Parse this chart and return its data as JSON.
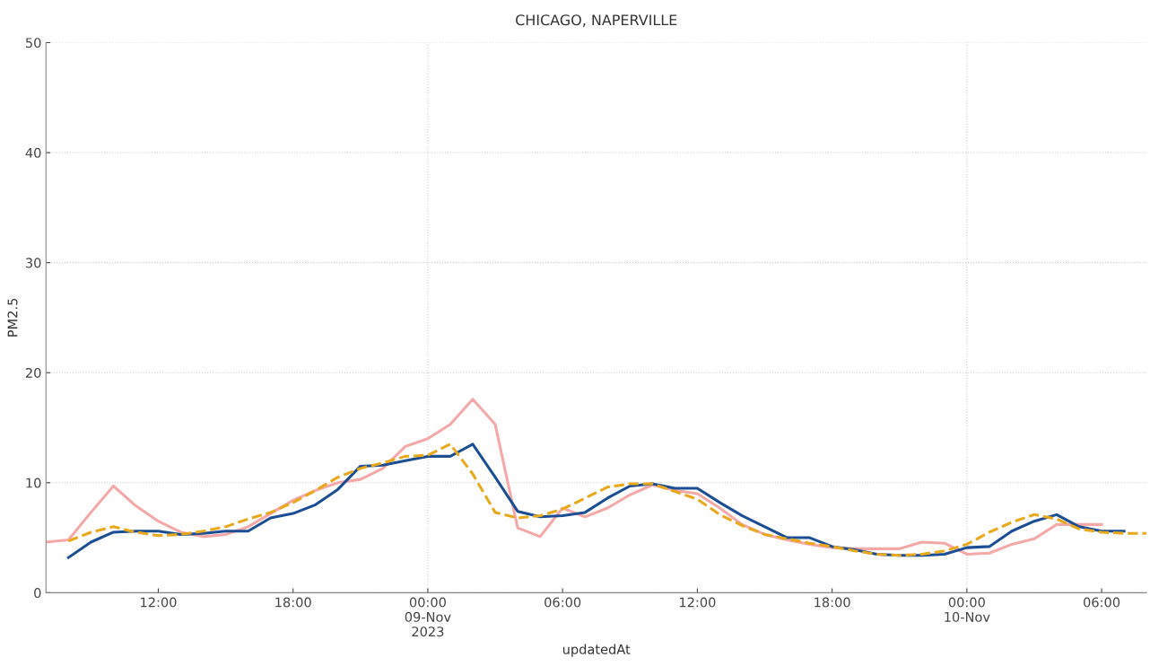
{
  "chart_data": {
    "type": "line",
    "title": "CHICAGO, NAPERVILLE",
    "xlabel": "updatedAt",
    "ylabel": "PM2.5",
    "xlim": [
      "2023-11-08T07:00",
      "2023-11-10T08:00"
    ],
    "xticks": [
      {
        "value": "2023-11-08T12:00",
        "label": "12:00"
      },
      {
        "value": "2023-11-08T18:00",
        "label": "18:00"
      },
      {
        "value": "2023-11-09T00:00",
        "label": "00:00\n09-Nov\n2023"
      },
      {
        "value": "2023-11-09T06:00",
        "label": "06:00"
      },
      {
        "value": "2023-11-09T12:00",
        "label": "12:00"
      },
      {
        "value": "2023-11-09T18:00",
        "label": "18:00"
      },
      {
        "value": "2023-11-10T00:00",
        "label": "00:00\n10-Nov"
      },
      {
        "value": "2023-11-10T06:00",
        "label": "06:00"
      }
    ],
    "ylim": [
      0,
      50
    ],
    "yticks": [
      0,
      10,
      20,
      30,
      40,
      50
    ],
    "grid": true,
    "series": [
      {
        "color": "#f4a9a8",
        "line_style": "solid",
        "x": [
          "2023-11-08T07:00",
          "2023-11-08T08:00",
          "2023-11-08T09:00",
          "2023-11-08T10:00",
          "2023-11-08T11:00",
          "2023-11-08T12:00",
          "2023-11-08T13:00",
          "2023-11-08T14:00",
          "2023-11-08T15:00",
          "2023-11-08T16:00",
          "2023-11-08T17:00",
          "2023-11-08T18:00",
          "2023-11-08T19:00",
          "2023-11-08T20:00",
          "2023-11-08T21:00",
          "2023-11-08T22:00",
          "2023-11-08T23:00",
          "2023-11-09T00:00",
          "2023-11-09T01:00",
          "2023-11-09T02:00",
          "2023-11-09T03:00",
          "2023-11-09T04:00",
          "2023-11-09T05:00",
          "2023-11-09T06:00",
          "2023-11-09T07:00",
          "2023-11-09T08:00",
          "2023-11-09T09:00",
          "2023-11-09T10:00",
          "2023-11-09T11:00",
          "2023-11-09T12:00",
          "2023-11-09T13:00",
          "2023-11-09T14:00",
          "2023-11-09T15:00",
          "2023-11-09T16:00",
          "2023-11-09T17:00",
          "2023-11-09T18:00",
          "2023-11-09T19:00",
          "2023-11-09T20:00",
          "2023-11-09T21:00",
          "2023-11-09T22:00",
          "2023-11-09T23:00",
          "2023-11-10T00:00",
          "2023-11-10T01:00",
          "2023-11-10T02:00",
          "2023-11-10T03:00",
          "2023-11-10T04:00",
          "2023-11-10T05:00",
          "2023-11-10T06:00"
        ],
        "values": [
          4.6,
          4.8,
          7.3,
          9.7,
          7.9,
          6.5,
          5.5,
          5.1,
          5.3,
          6.0,
          7.2,
          8.4,
          9.3,
          10.0,
          10.3,
          11.3,
          13.3,
          14.0,
          15.3,
          17.6,
          15.3,
          5.9,
          5.1,
          7.7,
          6.9,
          7.7,
          8.9,
          9.8,
          9.3,
          9.0,
          7.7,
          6.2,
          5.3,
          4.8,
          4.4,
          4.1,
          4.0,
          4.0,
          4.0,
          4.6,
          4.5,
          3.5,
          3.6,
          4.4,
          4.9,
          6.2,
          6.2,
          6.2
        ]
      },
      {
        "color": "#1c4e94",
        "line_style": "solid",
        "x": [
          "2023-11-08T08:00",
          "2023-11-08T09:00",
          "2023-11-08T10:00",
          "2023-11-08T11:00",
          "2023-11-08T12:00",
          "2023-11-08T13:00",
          "2023-11-08T14:00",
          "2023-11-08T15:00",
          "2023-11-08T16:00",
          "2023-11-08T17:00",
          "2023-11-08T18:00",
          "2023-11-08T19:00",
          "2023-11-08T20:00",
          "2023-11-08T21:00",
          "2023-11-08T22:00",
          "2023-11-08T23:00",
          "2023-11-09T00:00",
          "2023-11-09T01:00",
          "2023-11-09T02:00",
          "2023-11-09T03:00",
          "2023-11-09T04:00",
          "2023-11-09T05:00",
          "2023-11-09T06:00",
          "2023-11-09T07:00",
          "2023-11-09T08:00",
          "2023-11-09T09:00",
          "2023-11-09T10:00",
          "2023-11-09T11:00",
          "2023-11-09T12:00",
          "2023-11-09T13:00",
          "2023-11-09T14:00",
          "2023-11-09T15:00",
          "2023-11-09T16:00",
          "2023-11-09T17:00",
          "2023-11-09T18:00",
          "2023-11-09T19:00",
          "2023-11-09T20:00",
          "2023-11-09T21:00",
          "2023-11-09T22:00",
          "2023-11-09T23:00",
          "2023-11-10T00:00",
          "2023-11-10T01:00",
          "2023-11-10T02:00",
          "2023-11-10T03:00",
          "2023-11-10T04:00",
          "2023-11-10T05:00",
          "2023-11-10T06:00",
          "2023-11-10T07:00"
        ],
        "values": [
          3.2,
          4.6,
          5.5,
          5.6,
          5.6,
          5.3,
          5.4,
          5.6,
          5.6,
          6.8,
          7.2,
          8.0,
          9.4,
          11.5,
          11.6,
          12.0,
          12.4,
          12.4,
          13.5,
          10.5,
          7.4,
          6.9,
          7.0,
          7.3,
          8.6,
          9.7,
          9.9,
          9.5,
          9.5,
          8.2,
          7.0,
          6.0,
          5.0,
          5.0,
          4.2,
          3.9,
          3.5,
          3.4,
          3.4,
          3.5,
          4.1,
          4.2,
          5.6,
          6.5,
          7.1,
          6.0,
          5.6,
          5.6
        ]
      },
      {
        "color": "#e8a91c",
        "line_style": "dashed",
        "x": [
          "2023-11-08T08:00",
          "2023-11-08T09:00",
          "2023-11-08T10:00",
          "2023-11-08T11:00",
          "2023-11-08T12:00",
          "2023-11-08T13:00",
          "2023-11-08T14:00",
          "2023-11-08T15:00",
          "2023-11-08T16:00",
          "2023-11-08T17:00",
          "2023-11-08T18:00",
          "2023-11-08T19:00",
          "2023-11-08T20:00",
          "2023-11-08T21:00",
          "2023-11-08T22:00",
          "2023-11-08T23:00",
          "2023-11-09T00:00",
          "2023-11-09T01:00",
          "2023-11-09T02:00",
          "2023-11-09T03:00",
          "2023-11-09T04:00",
          "2023-11-09T05:00",
          "2023-11-09T06:00",
          "2023-11-09T07:00",
          "2023-11-09T08:00",
          "2023-11-09T09:00",
          "2023-11-09T10:00",
          "2023-11-09T11:00",
          "2023-11-09T12:00",
          "2023-11-09T13:00",
          "2023-11-09T14:00",
          "2023-11-09T15:00",
          "2023-11-09T16:00",
          "2023-11-09T17:00",
          "2023-11-09T18:00",
          "2023-11-09T19:00",
          "2023-11-09T20:00",
          "2023-11-09T21:00",
          "2023-11-09T22:00",
          "2023-11-09T23:00",
          "2023-11-10T00:00",
          "2023-11-10T01:00",
          "2023-11-10T02:00",
          "2023-11-10T03:00",
          "2023-11-10T04:00",
          "2023-11-10T05:00",
          "2023-11-10T06:00",
          "2023-11-10T07:00",
          "2023-11-10T08:00"
        ],
        "values": [
          4.7,
          5.5,
          6.0,
          5.5,
          5.2,
          5.3,
          5.6,
          6.0,
          6.7,
          7.3,
          8.2,
          9.3,
          10.5,
          11.3,
          11.8,
          12.4,
          12.5,
          13.5,
          10.8,
          7.3,
          6.8,
          7.0,
          7.6,
          8.6,
          9.6,
          9.9,
          9.9,
          9.2,
          8.5,
          7.1,
          6.1,
          5.3,
          4.9,
          4.5,
          4.2,
          3.8,
          3.5,
          3.4,
          3.5,
          3.8,
          4.4,
          5.5,
          6.4,
          7.1,
          6.7,
          5.8,
          5.5,
          5.4,
          5.4
        ]
      }
    ]
  }
}
